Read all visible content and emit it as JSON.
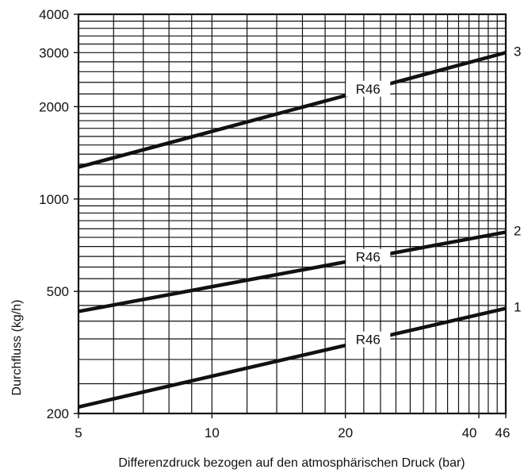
{
  "chart_data": {
    "type": "line",
    "title": "",
    "xlabel": "Differenzdruck bezogen auf den atmosphärischen Druck (bar)",
    "ylabel": "Durchfluss (kg/h)",
    "x_scale": "log",
    "y_scale": "log",
    "xlim": [
      5,
      46
    ],
    "ylim": [
      200,
      4000
    ],
    "x_ticks": [
      "5",
      "10",
      "20",
      "40",
      "46"
    ],
    "y_ticks": [
      "200",
      "500",
      "1000",
      "2000",
      "3000",
      "4000"
    ],
    "grid": true,
    "legend": "none",
    "series": [
      {
        "name": "1",
        "label": "R46",
        "x": [
          5,
          46
        ],
        "y": [
          210,
          440
        ]
      },
      {
        "name": "2",
        "label": "R46",
        "x": [
          5,
          46
        ],
        "y": [
          430,
          780
        ]
      },
      {
        "name": "3",
        "label": "R46",
        "x": [
          5,
          46
        ],
        "y": [
          1270,
          3000
        ]
      }
    ],
    "line_color": "#111111"
  }
}
